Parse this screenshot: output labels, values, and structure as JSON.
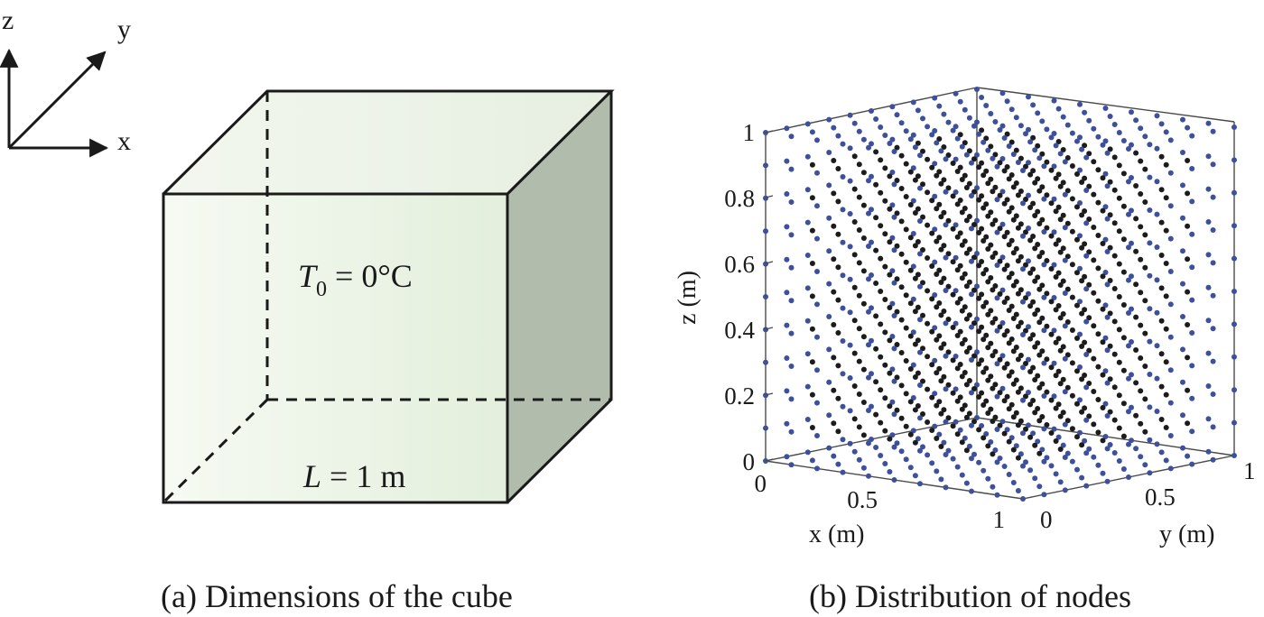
{
  "panel_a": {
    "caption": "(a) Dimensions of the cube",
    "axes_labels": {
      "x": "x",
      "y": "y",
      "z": "z"
    },
    "temperature": {
      "symbol": "T",
      "subscript": "0",
      "value": " = 0°C"
    },
    "length": {
      "symbol": "L",
      "value": " = 1 m"
    },
    "colors": {
      "front_face": "#eef5e9",
      "side_face": "#b2bcac",
      "top_face": "#eef3ea"
    }
  },
  "panel_b": {
    "caption": "(b) Distribution of nodes",
    "xlabel": "x (m)",
    "ylabel": "y (m)",
    "zlabel": "z (m)",
    "z_ticks": [
      "0",
      "0.2",
      "0.4",
      "0.6",
      "0.8",
      "1"
    ],
    "x_ticks": [
      "0",
      "0.5",
      "1"
    ],
    "y_ticks": [
      "0",
      "0.5",
      "1"
    ],
    "colors": {
      "boundary_nodes": "#3c509c",
      "interior_nodes": "#1c1c1c"
    },
    "grid_nodes_per_axis": 11
  }
}
